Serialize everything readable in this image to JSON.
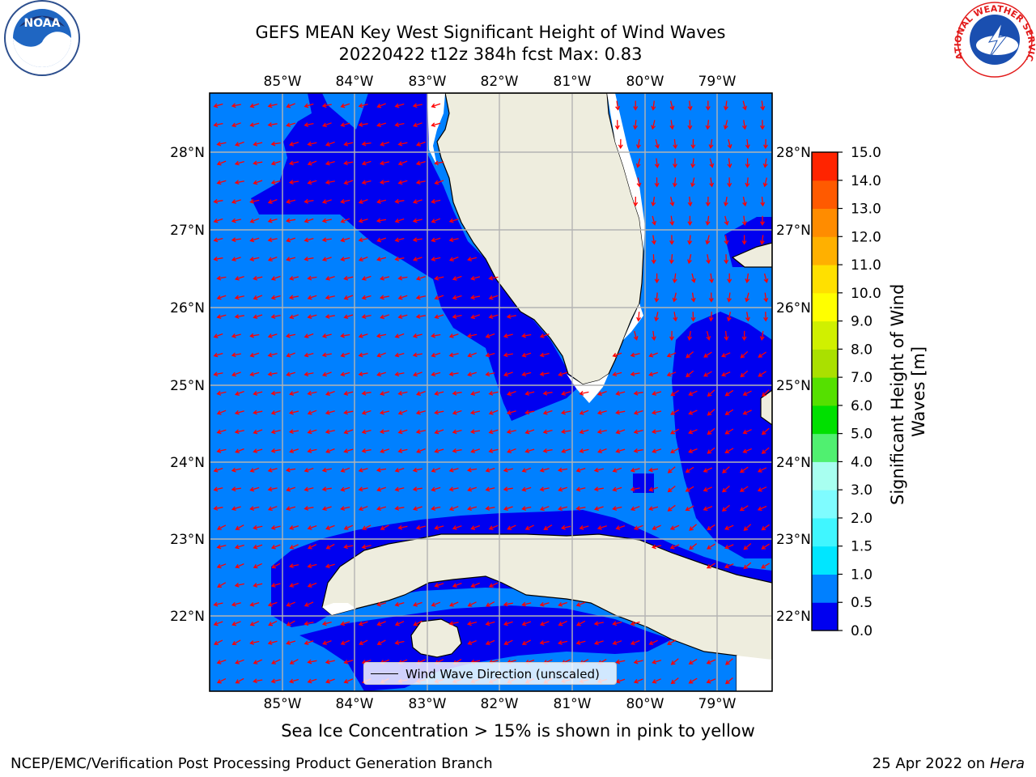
{
  "title": {
    "line1": "GEFS MEAN Key West Significant Height of Wind Waves",
    "line2": "20220422 t12z 384h fcst   Max: 0.83"
  },
  "axes": {
    "lon_labels": [
      "85°W",
      "84°W",
      "83°W",
      "82°W",
      "81°W",
      "80°W",
      "79°W"
    ],
    "lat_labels": [
      "28°N",
      "27°N",
      "26°N",
      "25°N",
      "24°N",
      "23°N",
      "22°N"
    ]
  },
  "legend": {
    "label": "Wind Wave Direction (unscaled)"
  },
  "colorbar": {
    "label": "Significant Height of Wind Waves [m]",
    "ticks": [
      "0.0",
      "0.5",
      "1.0",
      "1.5",
      "2.0",
      "3.0",
      "4.0",
      "5.0",
      "6.0",
      "7.0",
      "8.0",
      "9.0",
      "10.0",
      "11.0",
      "12.0",
      "13.0",
      "14.0",
      "15.0"
    ],
    "colors": [
      "#0000f0",
      "#0080ff",
      "#00e6ff",
      "#40f6ff",
      "#7ffcff",
      "#a8fff0",
      "#50f070",
      "#00e000",
      "#55e000",
      "#aae000",
      "#d0f000",
      "#ffff00",
      "#ffe000",
      "#ffb000",
      "#ff8c00",
      "#ff5a00",
      "#ff2400",
      "#ff0000"
    ]
  },
  "colors": {
    "land": "#eeedde",
    "shallow": "#0000f0",
    "deeper": "#0080ff",
    "arrow": "#ff0000",
    "grid": "#b4b4b4"
  },
  "ice_note": "Sea Ice Concentration > 15% is shown in pink to yellow",
  "footer": {
    "left": "NCEP/EMC/Verification Post Processing Product Generation Branch",
    "date": "25 Apr 2022 on ",
    "host": "Hera"
  },
  "logos": {
    "noaa_text": "NOAA",
    "nws_text": "NATIONAL WEATHER SERVICE"
  },
  "chart_data": {
    "type": "heatmap",
    "title": "GEFS MEAN Key West Significant Height of Wind Waves",
    "subtitle": "20220422 t12z 384h fcst   Max: 0.83",
    "xlabel": "",
    "ylabel": "",
    "lon_range": [
      -86,
      -78.4
    ],
    "lat_range": [
      21,
      28.8
    ],
    "max_value": 0.83,
    "units": "m",
    "colorbar_bounds": [
      0.0,
      0.5,
      1.0,
      1.5,
      2.0,
      3.0,
      4.0,
      5.0,
      6.0,
      7.0,
      8.0,
      9.0,
      10.0,
      11.0,
      12.0,
      13.0,
      14.0,
      15.0
    ],
    "value_bands_shown": [
      "0.0-0.5",
      "0.5-1.0"
    ],
    "vector_field": "Wind Wave Direction (unscaled)",
    "grid": true
  }
}
